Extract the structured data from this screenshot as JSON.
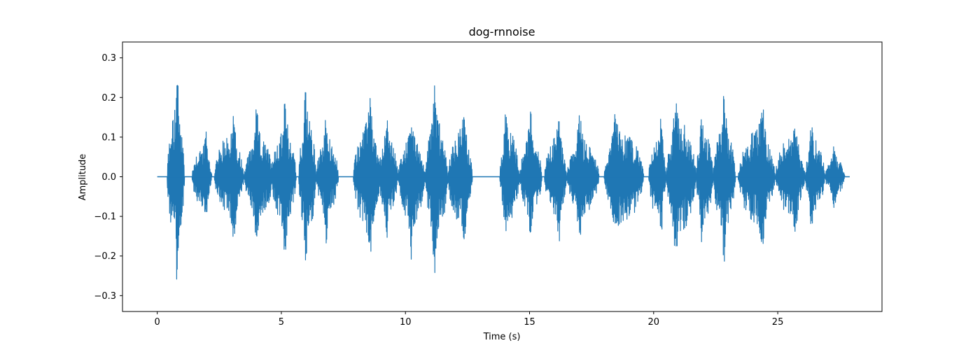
{
  "chart_data": {
    "type": "line",
    "title": "dog-rnnoise",
    "xlabel": "Time (s)",
    "ylabel": "Amplitude",
    "xlim": [
      -1.4,
      29.2
    ],
    "ylim": [
      -0.34,
      0.34
    ],
    "xticks": [
      0,
      5,
      10,
      15,
      20,
      25
    ],
    "yticks": [
      -0.3,
      -0.2,
      -0.1,
      0.0,
      0.1,
      0.2,
      0.3
    ],
    "xtick_labels": [
      "0",
      "5",
      "10",
      "15",
      "20",
      "25"
    ],
    "ytick_labels": [
      "−0.3",
      "−0.2",
      "−0.1",
      "0.0",
      "0.1",
      "0.2",
      "0.3"
    ],
    "grid": false,
    "line_color": "#1f77b4",
    "duration": 27.9,
    "series": [
      {
        "segments": [
          {
            "start": 0.4,
            "end": 1.1,
            "peak": 0.31,
            "trough": -0.31
          },
          {
            "start": 1.4,
            "end": 2.2,
            "peak": 0.14,
            "trough": -0.14
          },
          {
            "start": 2.3,
            "end": 3.5,
            "peak": 0.19,
            "trough": -0.18
          },
          {
            "start": 3.5,
            "end": 4.7,
            "peak": 0.18,
            "trough": -0.18
          },
          {
            "start": 4.6,
            "end": 5.6,
            "peak": 0.23,
            "trough": -0.23
          },
          {
            "start": 5.7,
            "end": 6.4,
            "peak": 0.28,
            "trough": -0.28
          },
          {
            "start": 6.4,
            "end": 7.3,
            "peak": 0.18,
            "trough": -0.18
          },
          {
            "start": 7.9,
            "end": 9.0,
            "peak": 0.24,
            "trough": -0.24
          },
          {
            "start": 8.9,
            "end": 9.7,
            "peak": 0.19,
            "trough": -0.18
          },
          {
            "start": 9.7,
            "end": 10.8,
            "peak": 0.18,
            "trough": -0.22
          },
          {
            "start": 10.8,
            "end": 11.7,
            "peak": 0.28,
            "trough": -0.28
          },
          {
            "start": 11.7,
            "end": 12.7,
            "peak": 0.22,
            "trough": -0.22
          },
          {
            "start": 13.8,
            "end": 14.6,
            "peak": 0.21,
            "trough": -0.2
          },
          {
            "start": 14.6,
            "end": 15.5,
            "peak": 0.18,
            "trough": -0.18
          },
          {
            "start": 15.6,
            "end": 16.5,
            "peak": 0.19,
            "trough": -0.19
          },
          {
            "start": 16.5,
            "end": 17.8,
            "peak": 0.17,
            "trough": -0.17
          },
          {
            "start": 18.0,
            "end": 19.6,
            "peak": 0.2,
            "trough": -0.21
          },
          {
            "start": 19.8,
            "end": 20.5,
            "peak": 0.2,
            "trough": -0.19
          },
          {
            "start": 20.5,
            "end": 21.7,
            "peak": 0.25,
            "trough": -0.25
          },
          {
            "start": 21.7,
            "end": 22.4,
            "peak": 0.2,
            "trough": -0.2
          },
          {
            "start": 22.4,
            "end": 23.3,
            "peak": 0.24,
            "trough": -0.24
          },
          {
            "start": 23.4,
            "end": 24.9,
            "peak": 0.21,
            "trough": -0.22
          },
          {
            "start": 24.9,
            "end": 26.1,
            "peak": 0.18,
            "trough": -0.18
          },
          {
            "start": 26.1,
            "end": 26.9,
            "peak": 0.17,
            "trough": -0.17
          },
          {
            "start": 26.9,
            "end": 27.7,
            "peak": 0.09,
            "trough": -0.09
          }
        ]
      }
    ]
  }
}
